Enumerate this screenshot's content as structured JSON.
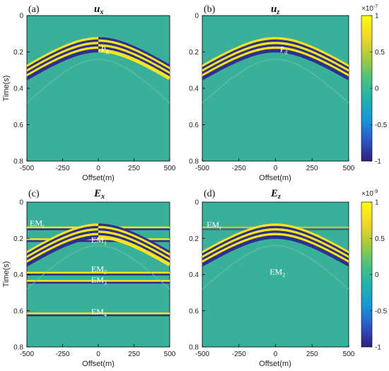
{
  "chart_data": [
    {
      "type": "heatmap",
      "panel_label": "(a)",
      "title": "u_x",
      "xlabel": "Offset(m)",
      "ylabel": "Time(s)",
      "xlim": [
        -500,
        500
      ],
      "ylim": [
        0,
        0.8
      ],
      "xticks": [
        -500,
        -250,
        0,
        250,
        500
      ],
      "yticks": [
        0,
        0.2,
        0.4,
        0.6,
        0.8
      ],
      "reflections": [
        {
          "apex_time": 0.15,
          "polarity_flip_at_zero_offset": true
        }
      ],
      "annotations": [
        {
          "text": "P",
          "sub": "d",
          "x": 20,
          "y": 0.2
        }
      ]
    },
    {
      "type": "heatmap",
      "panel_label": "(b)",
      "title": "u_z",
      "xlabel": "Offset(m)",
      "ylabel": "",
      "xlim": [
        -500,
        500
      ],
      "ylim": [
        0,
        0.8
      ],
      "xticks": [
        -500,
        -250,
        0,
        250,
        500
      ],
      "yticks": [
        0,
        0.2,
        0.4,
        0.6,
        0.8
      ],
      "reflections": [
        {
          "apex_time": 0.15,
          "polarity_flip_at_zero_offset": false
        }
      ],
      "annotations": [
        {
          "text": "P",
          "sub": "d",
          "x": 30,
          "y": 0.2
        }
      ],
      "colorbar": {
        "exponent": "×10",
        "exponent_power": "-7",
        "ticks": [
          1,
          0.5,
          0,
          -0.5,
          -1
        ]
      }
    },
    {
      "type": "heatmap",
      "panel_label": "(c)",
      "title": "E_x",
      "xlabel": "Offset(m)",
      "ylabel": "Time(s)",
      "xlim": [
        -500,
        500
      ],
      "ylim": [
        0,
        0.8
      ],
      "xticks": [
        -500,
        -250,
        0,
        250,
        500
      ],
      "yticks": [
        0,
        0.2,
        0.4,
        0.6,
        0.8
      ],
      "reflections": [
        {
          "apex_time": 0.15,
          "polarity_flip_at_zero_offset": true
        }
      ],
      "flat_events_s": [
        0.145,
        0.21,
        0.395,
        0.44,
        0.62
      ],
      "annotations": [
        {
          "text": "EM",
          "sub": "r",
          "x": -480,
          "y": 0.13
        },
        {
          "text": "EM",
          "sub": "1",
          "x": -50,
          "y": 0.225
        },
        {
          "text": "EM",
          "sub": "2",
          "x": -50,
          "y": 0.385
        },
        {
          "text": "EM",
          "sub": "3",
          "x": -50,
          "y": 0.445
        },
        {
          "text": "EM",
          "sub": "4",
          "x": -50,
          "y": 0.62
        }
      ]
    },
    {
      "type": "heatmap",
      "panel_label": "(d)",
      "title": "E_z",
      "xlabel": "Offset(m)",
      "ylabel": "",
      "xlim": [
        -500,
        500
      ],
      "ylim": [
        0,
        0.8
      ],
      "xticks": [
        -500,
        -250,
        0,
        250,
        500
      ],
      "yticks": [
        0,
        0.2,
        0.4,
        0.6,
        0.8
      ],
      "reflections": [
        {
          "apex_time": 0.15,
          "polarity_flip_at_zero_offset": false
        }
      ],
      "flat_events_s": [
        0.145
      ],
      "annotations": [
        {
          "text": "EM",
          "sub": "r",
          "x": -470,
          "y": 0.14
        },
        {
          "text": "EM",
          "sub": "2",
          "x": -40,
          "y": 0.4
        }
      ],
      "colorbar": {
        "exponent": "×10",
        "exponent_power": "-9",
        "ticks": [
          1,
          0.5,
          0,
          -0.5,
          -1
        ]
      }
    }
  ],
  "colors": {
    "background": "#3aaf9a",
    "positive": "#f9e61a",
    "negative": "#2f2f8f",
    "colormap": [
      "#2d1f7a",
      "#2d56c8",
      "#1797d6",
      "#20b2aa",
      "#4cc27c",
      "#a8cb3c",
      "#f4d62a",
      "#f9fb0e"
    ]
  }
}
